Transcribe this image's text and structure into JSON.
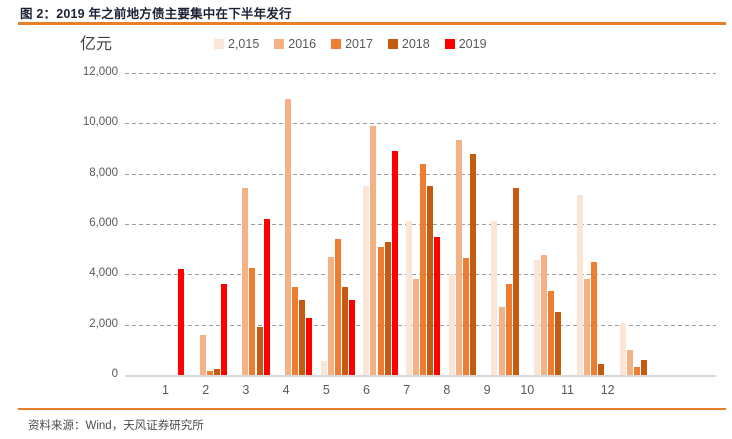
{
  "figure": {
    "title": "图 2：2019 年之前地方债主要集中在下半年发行"
  },
  "footer": {
    "source": "资料来源：Wind，天风证券研究所"
  },
  "colors": {
    "accent_orange": "#e87f27",
    "axis_text": "#595959",
    "gridline_gray": "#9e9e9e",
    "baseline_gray": "#d8d8d8"
  },
  "chart_data": {
    "type": "bar",
    "title": "2019 年之前地方债主要集中在下半年发行",
    "unit": "亿元",
    "categories": [
      "1",
      "2",
      "3",
      "4",
      "5",
      "6",
      "7",
      "8",
      "9",
      "10",
      "11",
      "12"
    ],
    "xlabel": "",
    "ylabel": "亿元",
    "ylim": [
      0,
      12000
    ],
    "grid": "horizontal-dashed",
    "legend_position": "top",
    "y_ticks": [
      {
        "value": 12000,
        "label": "12,000"
      },
      {
        "value": 10000,
        "label": "10,000"
      },
      {
        "value": 8000,
        "label": "8,000"
      },
      {
        "value": 6000,
        "label": "6,000"
      },
      {
        "value": 4000,
        "label": "4,000"
      },
      {
        "value": 2000,
        "label": "2,000"
      },
      {
        "value": 0,
        "label": "0"
      }
    ],
    "series": [
      {
        "name": "2,015",
        "color": "#fbe5d6",
        "values": [
          null,
          null,
          null,
          null,
          550,
          7500,
          6100,
          4000,
          6100,
          4550,
          7150,
          2050
        ]
      },
      {
        "name": "2016",
        "color": "#f4b183",
        "values": [
          null,
          1600,
          7450,
          10950,
          4700,
          9900,
          3800,
          9350,
          2700,
          4750,
          3800,
          1000
        ]
      },
      {
        "name": "2017",
        "color": "#ed7d31",
        "values": [
          null,
          150,
          4250,
          3500,
          5400,
          5100,
          8400,
          4650,
          3600,
          3350,
          4500,
          300
        ]
      },
      {
        "name": "2018",
        "color": "#c55a11",
        "values": [
          null,
          250,
          1900,
          3000,
          3500,
          5300,
          7500,
          8800,
          7450,
          2500,
          450,
          600
        ]
      },
      {
        "name": "2019",
        "color": "#ff0000",
        "values": [
          4200,
          3600,
          6200,
          2250,
          3000,
          8900,
          5500,
          null,
          null,
          null,
          null,
          null
        ]
      }
    ]
  }
}
